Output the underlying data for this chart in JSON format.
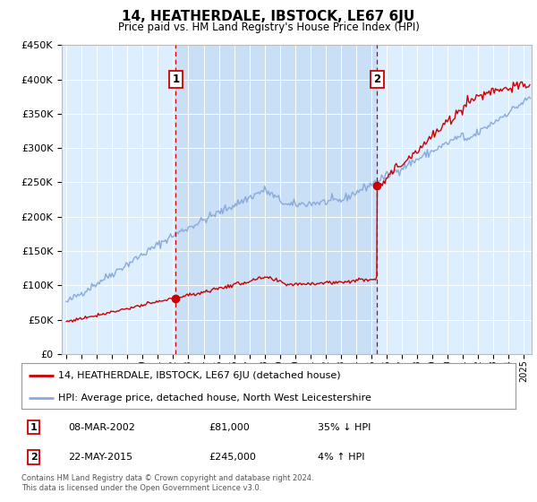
{
  "title": "14, HEATHERDALE, IBSTOCK, LE67 6JU",
  "subtitle": "Price paid vs. HM Land Registry's House Price Index (HPI)",
  "legend_line1": "14, HEATHERDALE, IBSTOCK, LE67 6JU (detached house)",
  "legend_line2": "HPI: Average price, detached house, North West Leicestershire",
  "annotation1_date": "08-MAR-2002",
  "annotation1_price": "£81,000",
  "annotation1_hpi": "35% ↓ HPI",
  "annotation2_date": "22-MAY-2015",
  "annotation2_price": "£245,000",
  "annotation2_hpi": "4% ↑ HPI",
  "footer": "Contains HM Land Registry data © Crown copyright and database right 2024.\nThis data is licensed under the Open Government Licence v3.0.",
  "property_color": "#cc0000",
  "hpi_color": "#88aadd",
  "annotation_color": "#cc0000",
  "vline_color": "#cc0000",
  "background_color": "#ddeeff",
  "shade_color": "#c8dff5",
  "ylim": [
    0,
    450000
  ],
  "xlim_start": 1994.7,
  "xlim_end": 2025.5,
  "sale1_x": 2002.18,
  "sale1_y": 81000,
  "sale2_x": 2015.38,
  "sale2_y": 245000
}
